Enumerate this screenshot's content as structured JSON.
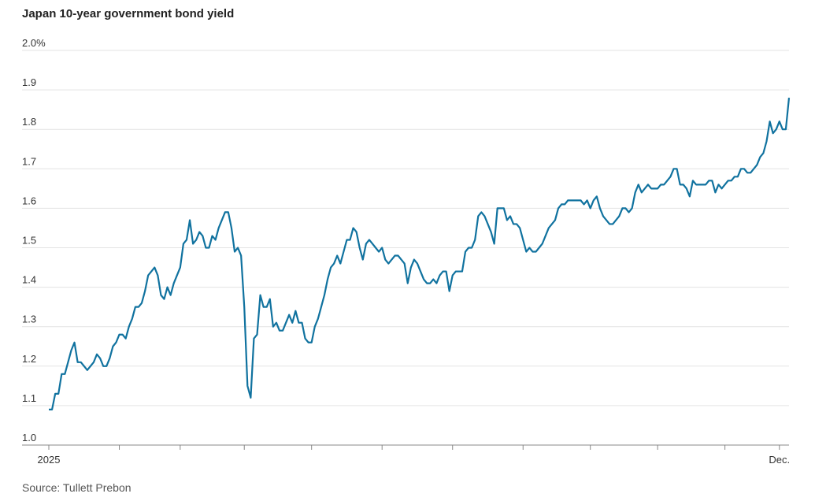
{
  "chart_data": {
    "type": "line",
    "title": "Japan 10-year government bond yield",
    "source": "Source: Tullett Prebon",
    "color": "#10729f",
    "values": [
      1.09,
      1.09,
      1.13,
      1.13,
      1.18,
      1.18,
      1.21,
      1.24,
      1.26,
      1.21,
      1.21,
      1.2,
      1.19,
      1.2,
      1.21,
      1.23,
      1.22,
      1.2,
      1.2,
      1.22,
      1.25,
      1.26,
      1.28,
      1.28,
      1.27,
      1.3,
      1.32,
      1.35,
      1.35,
      1.36,
      1.39,
      1.43,
      1.44,
      1.45,
      1.43,
      1.38,
      1.37,
      1.4,
      1.38,
      1.41,
      1.43,
      1.45,
      1.51,
      1.52,
      1.57,
      1.51,
      1.52,
      1.54,
      1.53,
      1.5,
      1.5,
      1.53,
      1.52,
      1.55,
      1.57,
      1.59,
      1.59,
      1.55,
      1.49,
      1.5,
      1.48,
      1.35,
      1.15,
      1.12,
      1.27,
      1.28,
      1.38,
      1.35,
      1.35,
      1.37,
      1.3,
      1.31,
      1.29,
      1.29,
      1.31,
      1.33,
      1.31,
      1.34,
      1.31,
      1.31,
      1.27,
      1.26,
      1.26,
      1.3,
      1.32,
      1.35,
      1.38,
      1.42,
      1.45,
      1.46,
      1.48,
      1.46,
      1.49,
      1.52,
      1.52,
      1.55,
      1.54,
      1.5,
      1.47,
      1.51,
      1.52,
      1.51,
      1.5,
      1.49,
      1.5,
      1.47,
      1.46,
      1.47,
      1.48,
      1.48,
      1.47,
      1.46,
      1.41,
      1.45,
      1.47,
      1.46,
      1.44,
      1.42,
      1.41,
      1.41,
      1.42,
      1.41,
      1.43,
      1.44,
      1.44,
      1.39,
      1.43,
      1.44,
      1.44,
      1.44,
      1.49,
      1.5,
      1.5,
      1.52,
      1.58,
      1.59,
      1.58,
      1.56,
      1.54,
      1.51,
      1.6,
      1.6,
      1.6,
      1.57,
      1.58,
      1.56,
      1.56,
      1.55,
      1.52,
      1.49,
      1.5,
      1.49,
      1.49,
      1.5,
      1.51,
      1.53,
      1.55,
      1.56,
      1.57,
      1.6,
      1.61,
      1.61,
      1.62,
      1.62,
      1.62,
      1.62,
      1.62,
      1.61,
      1.62,
      1.6,
      1.62,
      1.63,
      1.6,
      1.58,
      1.57,
      1.56,
      1.56,
      1.57,
      1.58,
      1.6,
      1.6,
      1.59,
      1.6,
      1.64,
      1.66,
      1.64,
      1.65,
      1.66,
      1.65,
      1.65,
      1.65,
      1.66,
      1.66,
      1.67,
      1.68,
      1.7,
      1.7,
      1.66,
      1.66,
      1.65,
      1.63,
      1.67,
      1.66,
      1.66,
      1.66,
      1.66,
      1.67,
      1.67,
      1.64,
      1.66,
      1.65,
      1.66,
      1.67,
      1.67,
      1.68,
      1.68,
      1.7,
      1.7,
      1.69,
      1.69,
      1.7,
      1.71,
      1.73,
      1.74,
      1.77,
      1.82,
      1.79,
      1.8,
      1.82,
      1.8,
      1.8,
      1.88
    ],
    "xlim": [
      0,
      231
    ],
    "xticks": [
      {
        "value": 0,
        "label": "2025"
      },
      {
        "value": 228,
        "label": "Dec."
      }
    ],
    "minor_xticks": [
      22,
      41,
      61,
      82,
      104,
      126,
      148,
      169,
      190,
      211
    ],
    "ylim": [
      1.0,
      2.0
    ],
    "yticks": [
      {
        "value": 1.0,
        "label": "1.0"
      },
      1.1,
      1.2,
      1.3,
      1.4,
      1.5,
      1.6,
      1.7,
      1.8,
      1.9,
      {
        "value": 2.0,
        "label": "2.0%"
      }
    ],
    "grid": true
  }
}
